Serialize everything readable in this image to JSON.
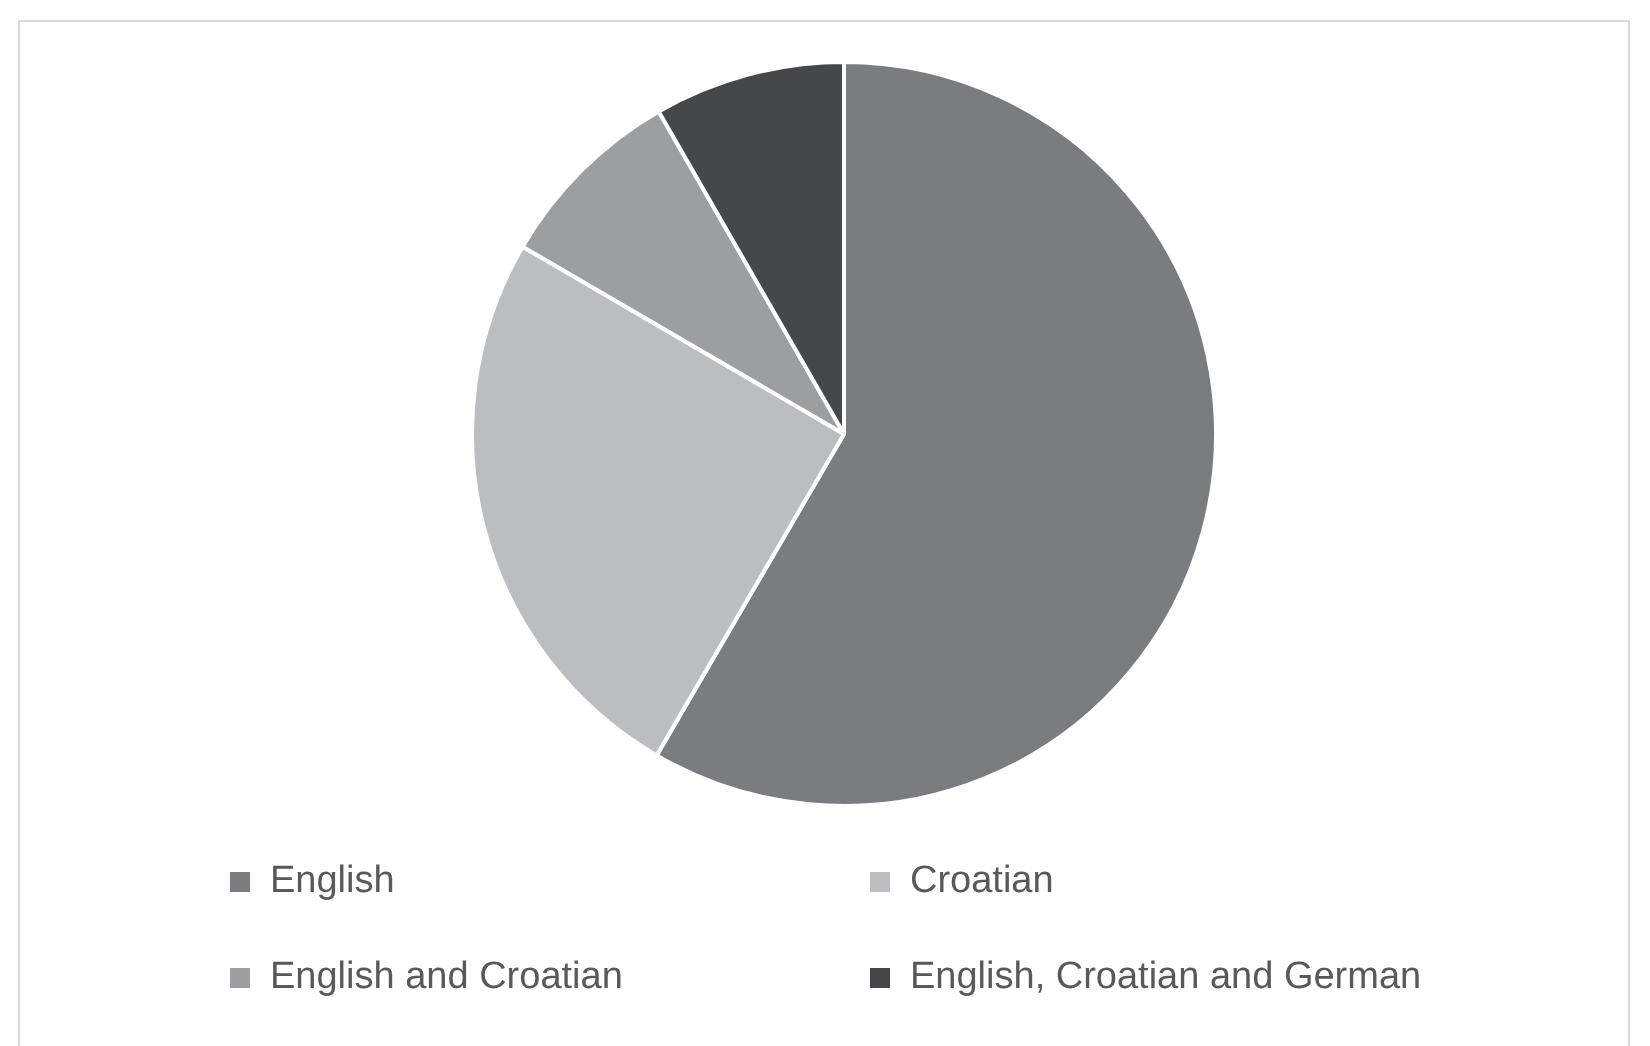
{
  "chart_data": {
    "type": "pie",
    "categories": [
      "English",
      "Croatian",
      "English and Croatian",
      "English, Croatian and German"
    ],
    "values": [
      58.4,
      25,
      8.3,
      8.3
    ],
    "colors": [
      "#7b7c80",
      "#bcbdc0",
      "#9d9ea1",
      "#46474a"
    ],
    "legend": "bottom"
  }
}
